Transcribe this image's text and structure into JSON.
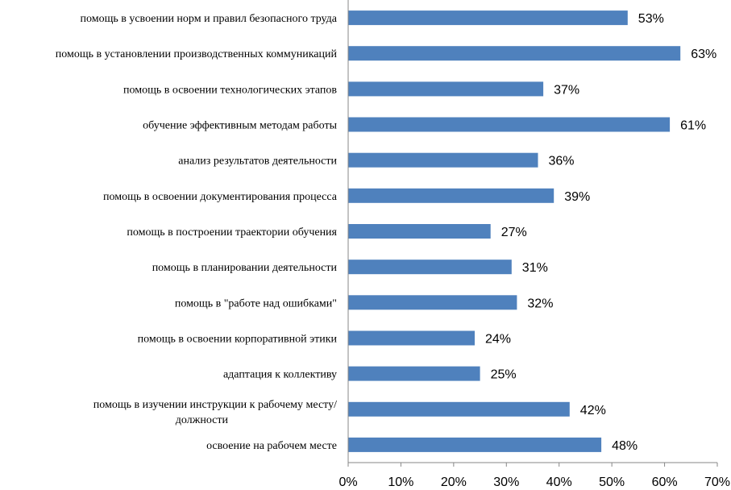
{
  "chart_data": {
    "type": "bar",
    "orientation": "horizontal",
    "categories": [
      "помощь в усвоении норм и правил безопасного труда",
      "помощь в установлении производственных коммуникаций",
      "помощь в освоении  технологических этапов",
      "обучение эффективным методам работы",
      "анализ результатов деятельности",
      "помощь в освоении документирования процесса",
      "помощь в построении траектории обучения",
      "помощь в планировании деятельности",
      "помощь в \"работе над ошибками\"",
      "помощь в освоении корпоративной этики",
      "адаптация к коллективу",
      "помощь в изучении инструкции к рабочему месту/ должности",
      "освоение на рабочем месте"
    ],
    "values": [
      53,
      63,
      37,
      61,
      36,
      39,
      27,
      31,
      32,
      24,
      25,
      42,
      48
    ],
    "value_labels": [
      "53%",
      "63%",
      "37%",
      "61%",
      "36%",
      "39%",
      "27%",
      "31%",
      "32%",
      "24%",
      "25%",
      "42%",
      "48%"
    ],
    "xlim": [
      0,
      70
    ],
    "x_ticks": [
      0,
      10,
      20,
      30,
      40,
      50,
      60,
      70
    ],
    "x_tick_labels": [
      "0%",
      "10%",
      "20%",
      "30%",
      "40%",
      "50%",
      "60%",
      "70%"
    ],
    "bar_color": "#4f81bd",
    "grid": false,
    "legend": "none",
    "title": "",
    "xlabel": "",
    "ylabel": ""
  }
}
